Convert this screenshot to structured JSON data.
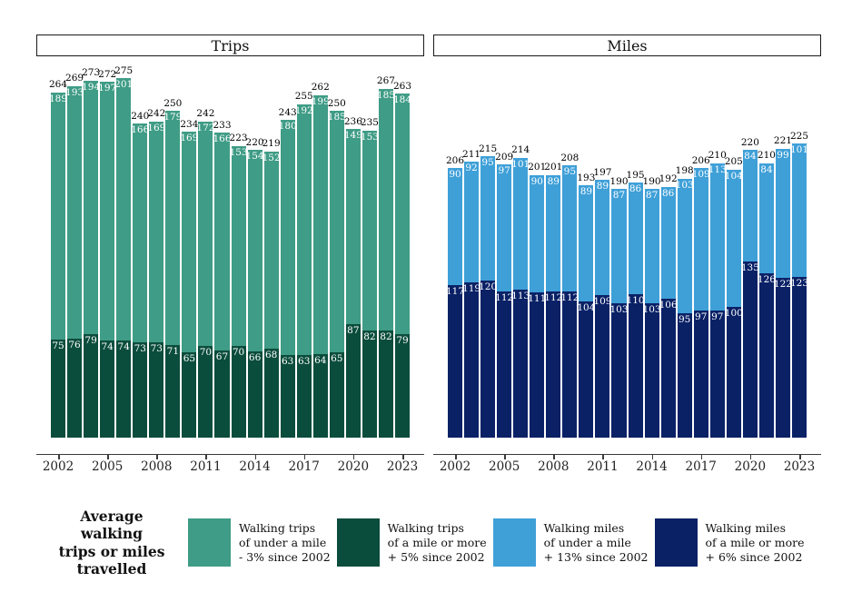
{
  "panels": [
    {
      "id": "trips",
      "title": "Trips"
    },
    {
      "id": "miles",
      "title": "Miles"
    }
  ],
  "chart_data": [
    {
      "id": "trips",
      "type": "bar",
      "stacked": true,
      "panel_title": "Trips",
      "x": [
        2002,
        2003,
        2004,
        2005,
        2006,
        2007,
        2008,
        2009,
        2010,
        2011,
        2012,
        2013,
        2014,
        2015,
        2016,
        2017,
        2018,
        2019,
        2020,
        2021,
        2022,
        2023
      ],
      "series": [
        {
          "name": "Walking trips of under a mile",
          "stack_position": "top",
          "color": "#3F9C86",
          "values": [
            189,
            193,
            194,
            197,
            201,
            166,
            169,
            179,
            169,
            172,
            166,
            153,
            154,
            152,
            180,
            192,
            199,
            185,
            149,
            153,
            185,
            184
          ]
        },
        {
          "name": "Walking trips of a mile or more",
          "stack_position": "bottom",
          "color": "#0B4D3C",
          "values": [
            75,
            76,
            79,
            74,
            74,
            73,
            73,
            71,
            65,
            70,
            67,
            70,
            66,
            68,
            63,
            63,
            64,
            65,
            87,
            82,
            82,
            79
          ]
        }
      ],
      "totals": [
        264,
        269,
        273,
        272,
        275,
        240,
        242,
        250,
        234,
        242,
        233,
        223,
        220,
        219,
        243,
        255,
        262,
        250,
        236,
        235,
        267,
        263
      ],
      "xticks": [
        2002,
        2005,
        2008,
        2011,
        2014,
        2017,
        2020,
        2023
      ],
      "ylim": [
        0,
        290
      ],
      "value_labels": true,
      "grid": false
    },
    {
      "id": "miles",
      "type": "bar",
      "stacked": true,
      "panel_title": "Miles",
      "x": [
        2002,
        2003,
        2004,
        2005,
        2006,
        2007,
        2008,
        2009,
        2010,
        2011,
        2012,
        2013,
        2014,
        2015,
        2016,
        2017,
        2018,
        2019,
        2020,
        2021,
        2022,
        2023
      ],
      "series": [
        {
          "name": "Walking miles of under a mile",
          "stack_position": "top",
          "color": "#3FA0D8",
          "values": [
            90,
            92,
            95,
            97,
            101,
            90,
            89,
            95,
            89,
            89,
            87,
            86,
            87,
            86,
            103,
            109,
            113,
            104,
            84,
            84,
            99,
            101
          ]
        },
        {
          "name": "Walking miles of a mile or more",
          "stack_position": "bottom",
          "color": "#0A2166",
          "values": [
            117,
            119,
            120,
            112,
            113,
            111,
            112,
            112,
            104,
            109,
            103,
            110,
            103,
            106,
            95,
            97,
            97,
            100,
            135,
            126,
            122,
            123
          ]
        }
      ],
      "totals": [
        206,
        211,
        215,
        209,
        214,
        201,
        201,
        208,
        193,
        197,
        190,
        195,
        190,
        192,
        198,
        206,
        210,
        205,
        220,
        210,
        221,
        225
      ],
      "xticks": [
        2002,
        2005,
        2008,
        2011,
        2014,
        2017,
        2020,
        2023
      ],
      "ylim": [
        0,
        290
      ],
      "value_labels": true,
      "grid": false
    }
  ],
  "legend": {
    "title_lines": [
      "Average walking",
      "trips or miles",
      "travelled"
    ],
    "items": [
      {
        "color": "#3F9C86",
        "lines": [
          "Walking trips",
          "of under a mile",
          "- 3% since 2002"
        ]
      },
      {
        "color": "#0B4D3C",
        "lines": [
          "Walking trips",
          "of a mile or more",
          "+ 5% since 2002"
        ]
      },
      {
        "color": "#3FA0D8",
        "lines": [
          "Walking miles",
          "of under a mile",
          "+ 13% since 2002"
        ]
      },
      {
        "color": "#0A2166",
        "lines": [
          "Walking miles",
          "of a mile or more",
          "+ 6% since 2002"
        ]
      }
    ]
  }
}
